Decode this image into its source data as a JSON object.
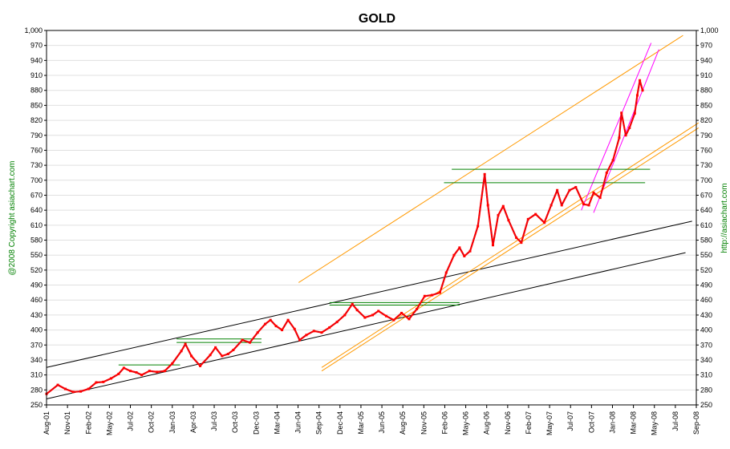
{
  "chart_data": {
    "type": "line",
    "title": "GOLD",
    "xlabel": "",
    "ylabel": "",
    "ylim": [
      250,
      1000
    ],
    "yticks": [
      250,
      280,
      310,
      340,
      370,
      400,
      430,
      460,
      490,
      520,
      550,
      580,
      610,
      640,
      670,
      700,
      730,
      760,
      790,
      820,
      850,
      880,
      910,
      940,
      970,
      1000
    ],
    "ytick_labels": [
      "250",
      "280",
      "310",
      "340",
      "370",
      "400",
      "430",
      "460",
      "490",
      "520",
      "550",
      "580",
      "610",
      "640",
      "670",
      "700",
      "730",
      "760",
      "790",
      "820",
      "850",
      "880",
      "910",
      "940",
      "970",
      "1,000"
    ],
    "xticks": [
      "Aug-01",
      "Nov-01",
      "Feb-02",
      "May-02",
      "Jul-02",
      "Oct-02",
      "Jan-03",
      "Apr-03",
      "Jul-03",
      "Oct-03",
      "Dec-03",
      "Mar-04",
      "Jun-04",
      "Sep-04",
      "Dec-04",
      "Mar-05",
      "Jun-05",
      "Aug-05",
      "Nov-05",
      "Feb-06",
      "May-06",
      "Aug-06",
      "Nov-06",
      "Feb-07",
      "May-07",
      "Jul-07",
      "Oct-07",
      "Jan-08",
      "Mar-08",
      "May-08",
      "Jul-08",
      "Sep-08"
    ],
    "grid": true,
    "series": [
      {
        "color": "#ff0000",
        "points": [
          [
            "2001-08-01",
            272
          ],
          [
            "2001-09-15",
            290
          ],
          [
            "2001-10-15",
            282
          ],
          [
            "2001-11-15",
            276
          ],
          [
            "2001-12-15",
            277
          ],
          [
            "2002-01-15",
            282
          ],
          [
            "2002-02-15",
            295
          ],
          [
            "2002-03-15",
            296
          ],
          [
            "2002-04-15",
            303
          ],
          [
            "2002-05-15",
            312
          ],
          [
            "2002-06-05",
            324
          ],
          [
            "2002-07-01",
            318
          ],
          [
            "2002-07-25",
            315
          ],
          [
            "2002-08-15",
            310
          ],
          [
            "2002-09-15",
            318
          ],
          [
            "2002-10-15",
            316
          ],
          [
            "2002-11-15",
            318
          ],
          [
            "2002-12-15",
            333
          ],
          [
            "2003-01-20",
            358
          ],
          [
            "2003-02-05",
            372
          ],
          [
            "2003-03-01",
            348
          ],
          [
            "2003-04-05",
            328
          ],
          [
            "2003-05-15",
            350
          ],
          [
            "2003-06-05",
            365
          ],
          [
            "2003-07-01",
            348
          ],
          [
            "2003-07-25",
            352
          ],
          [
            "2003-08-15",
            360
          ],
          [
            "2003-09-20",
            380
          ],
          [
            "2003-10-20",
            375
          ],
          [
            "2003-11-20",
            395
          ],
          [
            "2003-12-20",
            412
          ],
          [
            "2004-01-10",
            420
          ],
          [
            "2004-02-01",
            408
          ],
          [
            "2004-02-25",
            400
          ],
          [
            "2004-03-20",
            420
          ],
          [
            "2004-04-15",
            402
          ],
          [
            "2004-05-05",
            380
          ],
          [
            "2004-06-01",
            390
          ],
          [
            "2004-07-01",
            398
          ],
          [
            "2004-08-01",
            395
          ],
          [
            "2004-09-01",
            405
          ],
          [
            "2004-10-01",
            416
          ],
          [
            "2004-11-01",
            430
          ],
          [
            "2004-12-01",
            452
          ],
          [
            "2004-12-20",
            440
          ],
          [
            "2005-01-20",
            425
          ],
          [
            "2005-02-20",
            430
          ],
          [
            "2005-03-15",
            438
          ],
          [
            "2005-04-15",
            428
          ],
          [
            "2005-05-15",
            420
          ],
          [
            "2005-06-15",
            434
          ],
          [
            "2005-07-15",
            422
          ],
          [
            "2005-08-15",
            442
          ],
          [
            "2005-09-15",
            468
          ],
          [
            "2005-10-15",
            470
          ],
          [
            "2005-11-15",
            475
          ],
          [
            "2005-12-10",
            515
          ],
          [
            "2006-01-10",
            550
          ],
          [
            "2006-02-01",
            565
          ],
          [
            "2006-02-20",
            548
          ],
          [
            "2006-03-15",
            558
          ],
          [
            "2006-04-15",
            608
          ],
          [
            "2006-05-12",
            712
          ],
          [
            "2006-05-25",
            650
          ],
          [
            "2006-06-14",
            570
          ],
          [
            "2006-07-05",
            630
          ],
          [
            "2006-07-25",
            648
          ],
          [
            "2006-08-15",
            620
          ],
          [
            "2006-09-15",
            585
          ],
          [
            "2006-10-05",
            575
          ],
          [
            "2006-11-01",
            622
          ],
          [
            "2006-12-01",
            632
          ],
          [
            "2007-01-05",
            615
          ],
          [
            "2007-02-01",
            650
          ],
          [
            "2007-02-25",
            680
          ],
          [
            "2007-03-15",
            650
          ],
          [
            "2007-04-15",
            680
          ],
          [
            "2007-05-10",
            686
          ],
          [
            "2007-06-10",
            652
          ],
          [
            "2007-07-01",
            650
          ],
          [
            "2007-07-20",
            675
          ],
          [
            "2007-08-15",
            665
          ],
          [
            "2007-09-10",
            715
          ],
          [
            "2007-10-05",
            740
          ],
          [
            "2007-10-30",
            785
          ],
          [
            "2007-11-08",
            835
          ],
          [
            "2007-11-25",
            790
          ],
          [
            "2007-12-10",
            805
          ],
          [
            "2007-12-31",
            834
          ],
          [
            "2008-01-10",
            870
          ],
          [
            "2008-01-20",
            900
          ],
          [
            "2008-01-31",
            880
          ]
        ]
      }
    ],
    "trendlines": [
      {
        "color": "#000000",
        "from": [
          "2001-08-01",
          325
        ],
        "to": [
          "2008-08-15",
          618
        ]
      },
      {
        "color": "#000000",
        "from": [
          "2001-08-01",
          262
        ],
        "to": [
          "2008-07-20",
          555
        ]
      },
      {
        "color": "#ff9900",
        "from": [
          "2004-05-01",
          495
        ],
        "to": [
          "2008-07-10",
          990
        ]
      },
      {
        "color": "#ff9900",
        "from": [
          "2004-08-01",
          325
        ],
        "to": [
          "2008-09-10",
          815
        ]
      },
      {
        "color": "#ff9900",
        "from": [
          "2004-08-01",
          318
        ],
        "to": [
          "2008-09-10",
          805
        ]
      },
      {
        "color": "#ff00ff",
        "from": [
          "2007-06-01",
          640
        ],
        "to": [
          "2008-03-05",
          975
        ]
      },
      {
        "color": "#ff00ff",
        "from": [
          "2007-07-20",
          635
        ],
        "to": [
          "2008-04-05",
          962
        ]
      },
      {
        "color": "#008000",
        "from": [
          "2003-01-01",
          382
        ],
        "to": [
          "2003-12-05",
          382
        ]
      },
      {
        "color": "#008000",
        "from": [
          "2003-01-01",
          375
        ],
        "to": [
          "2003-12-05",
          375
        ]
      },
      {
        "color": "#008000",
        "from": [
          "2002-05-15",
          330
        ],
        "to": [
          "2003-01-15",
          330
        ]
      },
      {
        "color": "#008000",
        "from": [
          "2004-09-01",
          455
        ],
        "to": [
          "2006-02-01",
          455
        ]
      },
      {
        "color": "#008000",
        "from": [
          "2004-09-01",
          450
        ],
        "to": [
          "2006-02-01",
          450
        ]
      },
      {
        "color": "#008000",
        "from": [
          "2006-01-01",
          722
        ],
        "to": [
          "2008-03-01",
          722
        ]
      },
      {
        "color": "#008000",
        "from": [
          "2005-12-01",
          695
        ],
        "to": [
          "2008-02-10",
          695
        ]
      }
    ]
  },
  "left_text": "@2008 Copyright asiachart.com",
  "right_text": "http://asiachart.com"
}
